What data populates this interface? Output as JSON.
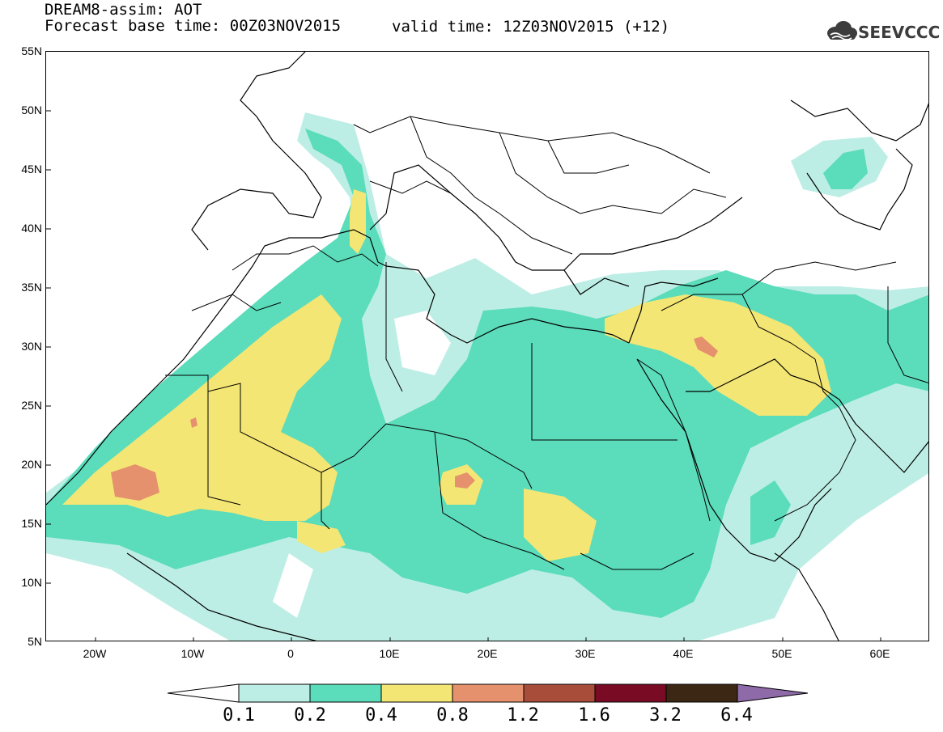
{
  "title": {
    "line1": "DREAM8-assim: AOT",
    "line2_left": "Forecast base time: 00Z03NOV2015",
    "line2_right": "valid time: 12Z03NOV2015 (+12)"
  },
  "logo": {
    "text": "SEEVCCC",
    "icon": "cloud-icon"
  },
  "map": {
    "lon_range": [
      -25,
      65
    ],
    "lat_range": [
      5,
      55
    ],
    "lat_ticks": [
      "55N",
      "50N",
      "45N",
      "40N",
      "35N",
      "30N",
      "25N",
      "20N",
      "15N",
      "10N",
      "5N"
    ],
    "lon_ticks": [
      "20W",
      "10W",
      "0",
      "10E",
      "20E",
      "30E",
      "40E",
      "50E",
      "60E"
    ]
  },
  "colorbar": {
    "labels": [
      "0.1",
      "0.2",
      "0.4",
      "0.8",
      "1.2",
      "1.6",
      "3.2",
      "6.4"
    ],
    "colors": [
      "#ffffff",
      "#bdeee5",
      "#5bdcbb",
      "#f3e674",
      "#e6916d",
      "#a94d3b",
      "#7a0b25",
      "#3b2714",
      "#8f6aa8"
    ]
  }
}
